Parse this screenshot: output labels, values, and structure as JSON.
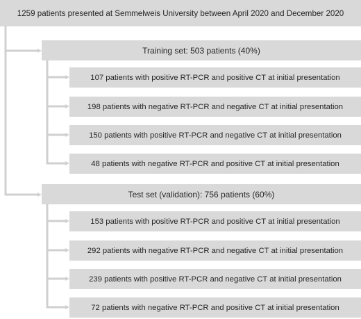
{
  "top": {
    "label": "1259 patients presented at Semmelweis University between April 2020 and December 2020"
  },
  "groups": [
    {
      "label": "Training set: 503 patients (40%)",
      "items": [
        "107 patients with positive RT-PCR and positive CT at initial presentation",
        "198 patients with negative RT-PCR and negative CT at initial presentation",
        "150 patients with positive RT-PCR and negative CT at initial presentation",
        "48 patients with negative RT-PCR and positive CT at initial presentation"
      ]
    },
    {
      "label": "Test set (validation): 756 patients (60%)",
      "items": [
        "153 patients with positive RT-PCR and positive CT at initial presentation",
        "292 patients with negative RT-PCR and negative CT at initial presentation",
        "239 patients with positive RT-PCR and negative CT at initial presentation",
        "72 patients with negative RT-PCR and positive CT at initial presentation"
      ]
    }
  ],
  "colors": {
    "box_fill": "#d9d9d9",
    "connector": "#d0d0d0",
    "text": "#262626"
  }
}
